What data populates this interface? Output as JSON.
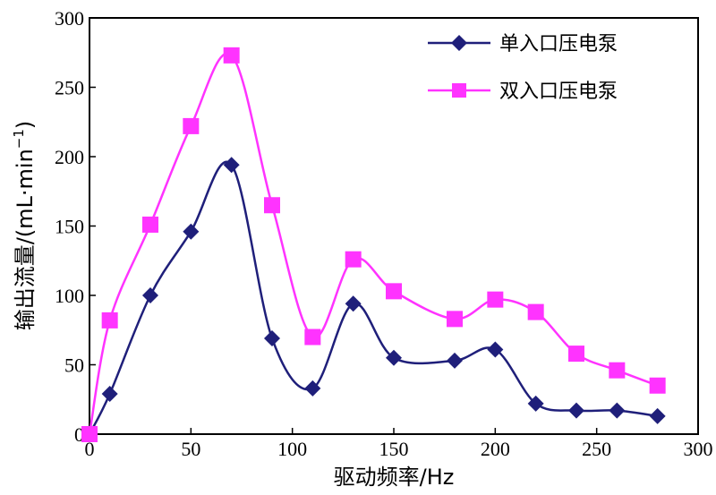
{
  "chart_data": {
    "type": "line",
    "xlabel": "驱动频率/Hz",
    "ylabel": "输出流量/(mL·min",
    "ylabel_superscript": "−1",
    "ylabel_suffix": ")",
    "xlim": [
      0,
      300
    ],
    "ylim": [
      0,
      300
    ],
    "x_ticks": [
      0,
      50,
      100,
      150,
      200,
      250,
      300
    ],
    "y_ticks": [
      0,
      50,
      100,
      150,
      200,
      250,
      300
    ],
    "grid": false,
    "legend_position": "top-right",
    "series": [
      {
        "name": "单入口压电泵",
        "color": "#1f1f7a",
        "marker": "diamond",
        "x": [
          0,
          10,
          30,
          50,
          70,
          90,
          110,
          130,
          150,
          180,
          200,
          220,
          240,
          260,
          280
        ],
        "y": [
          0,
          29,
          100,
          146,
          194,
          69,
          33,
          94,
          55,
          53,
          61,
          22,
          17,
          17,
          13
        ]
      },
      {
        "name": "双入口压电泵",
        "color": "#ff33ff",
        "marker": "square",
        "x": [
          0,
          10,
          30,
          50,
          70,
          90,
          110,
          130,
          150,
          180,
          200,
          220,
          240,
          260,
          280
        ],
        "y": [
          0,
          82,
          151,
          222,
          273,
          165,
          70,
          126,
          103,
          83,
          97,
          88,
          58,
          46,
          35
        ]
      }
    ]
  }
}
